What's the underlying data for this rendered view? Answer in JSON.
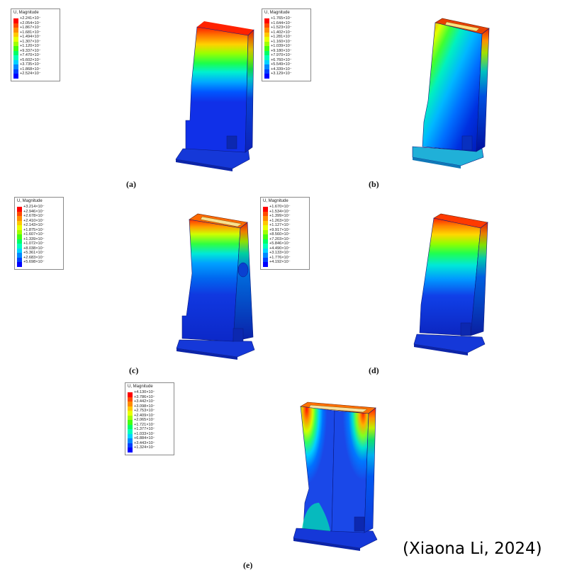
{
  "legend_colors": [
    "#ff0000",
    "#ff4a00",
    "#ff8c00",
    "#ffc800",
    "#e8ff00",
    "#a0ff00",
    "#44ff12",
    "#00ff66",
    "#00ffbb",
    "#00d2ff",
    "#0088ff",
    "#0040ff",
    "#0000ff"
  ],
  "panels": [
    {
      "label": "(a)",
      "legend_title": "U, Magnitude",
      "legend_values": [
        "+2.241×10⁻",
        "+2.054×10⁻",
        "+1.867×10⁻",
        "+1.681×10⁻",
        "+1.494×10⁻",
        "+1.307×10⁻",
        "+1.120×10⁻",
        "+9.337×10⁻",
        "+7.470×10⁻",
        "+5.602×10⁻",
        "+3.735×10⁻",
        "+1.868×10⁻",
        "+2.524×10⁻"
      ]
    },
    {
      "label": "(b)",
      "legend_title": "U, Magnitude",
      "legend_values": [
        "+1.765×10⁻",
        "+1.644×10⁻",
        "+1.523×10⁻",
        "+1.402×10⁻",
        "+1.281×10⁻",
        "+1.160×10⁻",
        "+1.039×10⁻",
        "+9.180×10⁻",
        "+7.970×10⁻",
        "+6.760×10⁻",
        "+5.549×10⁻",
        "+4.339×10⁻",
        "+3.129×10⁻"
      ]
    },
    {
      "label": "(c)",
      "legend_title": "U, Magnitude",
      "legend_values": [
        "+3.214×10⁻",
        "+2.946×10⁻",
        "+2.678×10⁻",
        "+2.410×10⁻",
        "+2.143×10⁻",
        "+1.875×10⁻",
        "+1.607×10⁻",
        "+1.339×10⁻",
        "+1.072×10⁻",
        "+8.038×10⁻",
        "+5.361×10⁻",
        "+2.683×10⁻",
        "+5.698×10⁻"
      ]
    },
    {
      "label": "(d)",
      "legend_title": "U, Magnitude",
      "legend_values": [
        "+1.670×10⁻",
        "+1.534×10⁻",
        "+1.399×10⁻",
        "+1.263×10⁻",
        "+1.127×10⁻",
        "+9.917×10⁻",
        "+8.560×10⁻",
        "+7.203×10⁻",
        "+5.846×10⁻",
        "+4.490×10⁻",
        "+3.133×10⁻",
        "+1.776×10⁻",
        "+4.192×10⁻"
      ]
    },
    {
      "label": "(e)",
      "legend_title": "U, Magnitude",
      "legend_values": [
        "+4.130×10⁻",
        "+3.786×10⁻",
        "+3.442×10⁻",
        "+3.098×10⁻",
        "+2.753×10⁻",
        "+2.409×10⁻",
        "+2.065×10⁻",
        "+1.721×10⁻",
        "+1.377×10⁻",
        "+1.033×10⁻",
        "+6.884×10⁻",
        "+3.443×10⁻",
        "+1.324×10⁻"
      ]
    }
  ],
  "citation": "(Xiaona Li, 2024)"
}
